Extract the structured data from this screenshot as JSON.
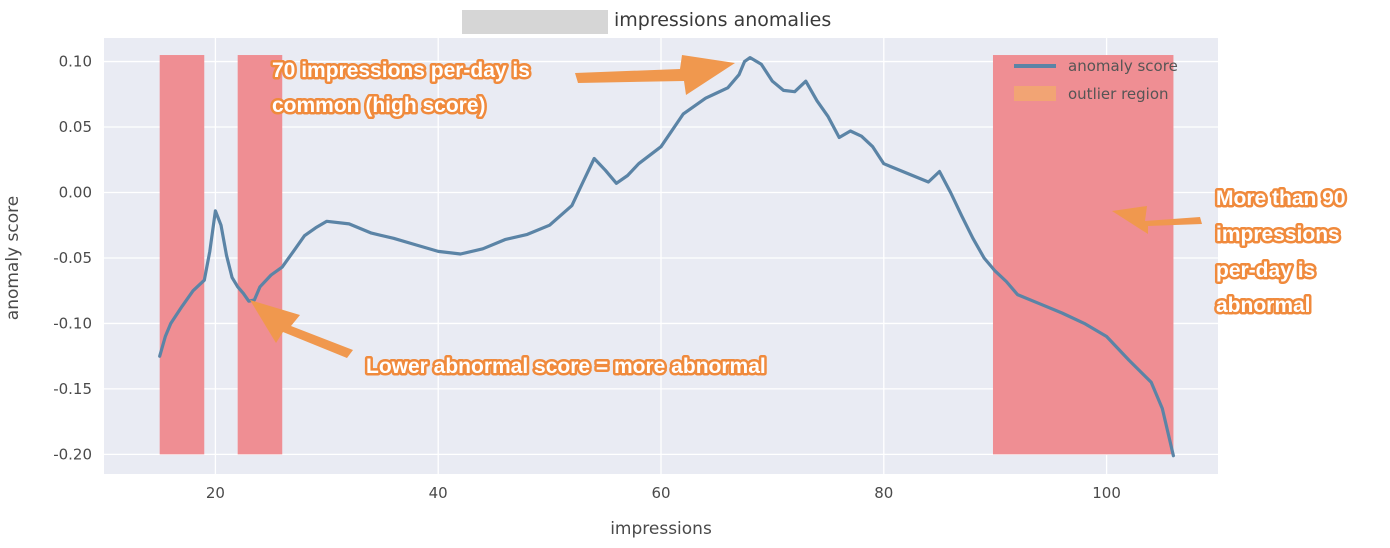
{
  "chart_data": {
    "type": "line",
    "title": "impressions anomalies",
    "xlabel": "impressions",
    "ylabel": "anomaly score",
    "xlim": [
      10,
      110
    ],
    "ylim": [
      -0.215,
      0.118
    ],
    "xticks": [
      20,
      40,
      60,
      80,
      100
    ],
    "yticks": [
      0.1,
      0.05,
      0.0,
      -0.05,
      -0.1,
      -0.15,
      -0.2
    ],
    "ytick_labels": [
      "0.10",
      "0.05",
      "0.00",
      "-0.05",
      "-0.10",
      "-0.15",
      "-0.20"
    ],
    "grid": true,
    "legend_position": "top-right",
    "legend": [
      "anomaly score",
      "outlier region"
    ],
    "series": [
      {
        "name": "anomaly score",
        "color": "#5b84a6",
        "x": [
          15,
          15.5,
          16,
          17,
          18,
          19,
          19.5,
          20,
          20.5,
          21,
          21.5,
          22,
          22.5,
          23,
          23.5,
          24,
          25,
          26,
          27,
          28,
          29,
          30,
          32,
          34,
          36,
          38,
          40,
          42,
          44,
          46,
          48,
          50,
          52,
          53,
          54,
          55,
          56,
          57,
          58,
          60,
          62,
          64,
          65,
          66,
          67,
          67.5,
          68,
          69,
          70,
          71,
          72,
          73,
          74,
          75,
          76,
          77,
          78,
          79,
          80,
          82,
          84,
          85,
          86,
          87,
          88,
          89,
          90,
          91,
          92,
          94,
          96,
          98,
          100,
          102,
          104,
          105,
          106
        ],
        "values": [
          -0.125,
          -0.11,
          -0.1,
          -0.087,
          -0.075,
          -0.067,
          -0.045,
          -0.014,
          -0.025,
          -0.048,
          -0.065,
          -0.072,
          -0.077,
          -0.083,
          -0.082,
          -0.072,
          -0.063,
          -0.057,
          -0.045,
          -0.033,
          -0.027,
          -0.022,
          -0.024,
          -0.031,
          -0.035,
          -0.04,
          -0.045,
          -0.047,
          -0.043,
          -0.036,
          -0.032,
          -0.025,
          -0.01,
          0.008,
          0.026,
          0.017,
          0.007,
          0.013,
          0.022,
          0.035,
          0.06,
          0.072,
          0.076,
          0.08,
          0.09,
          0.1,
          0.103,
          0.098,
          0.085,
          0.078,
          0.077,
          0.085,
          0.07,
          0.058,
          0.042,
          0.047,
          0.043,
          0.035,
          0.022,
          0.015,
          0.008,
          0.016,
          0.0,
          -0.018,
          -0.035,
          -0.05,
          -0.06,
          -0.068,
          -0.078,
          -0.085,
          -0.092,
          -0.1,
          -0.11,
          -0.128,
          -0.145,
          -0.165,
          -0.201
        ]
      }
    ],
    "outlier_regions": [
      {
        "x": [
          15,
          19
        ],
        "y": [
          -0.2,
          0.105
        ]
      },
      {
        "x": [
          22,
          26
        ],
        "y": [
          -0.2,
          0.105
        ]
      },
      {
        "x": [
          89.8,
          106
        ],
        "y": [
          -0.2,
          0.105
        ]
      }
    ],
    "annotations": [
      {
        "lines": [
          "70 impressions per-day is",
          "common (high score)"
        ]
      },
      {
        "lines": [
          "Lower abnormal score = more abnormal"
        ]
      },
      {
        "lines": [
          "More than 90",
          "impressions",
          "per-day is",
          "abnormal"
        ]
      }
    ],
    "colors": {
      "plot_background": "#e9ebf3",
      "grid": "#ffffff",
      "line": "#5b84a6",
      "outlier_region": "#ef8e93",
      "legend_region_patch": "#f2a474",
      "annotation_fill": "#ffffff",
      "annotation_outline": "#f08a3c",
      "arrow": "#f0984e"
    }
  }
}
